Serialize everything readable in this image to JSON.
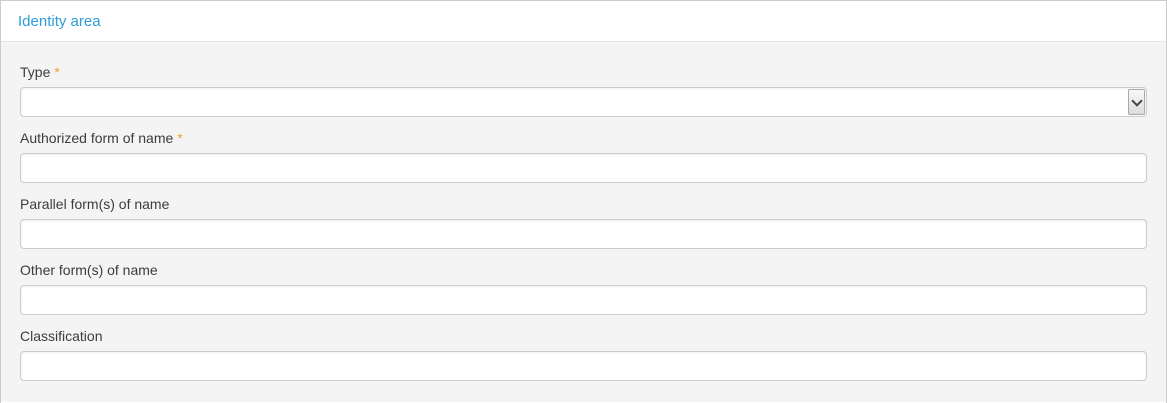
{
  "panel": {
    "title": "Identity area",
    "required_marker": "*"
  },
  "fields": [
    {
      "label": "Type",
      "required": true,
      "control": "select",
      "value": ""
    },
    {
      "label": "Authorized form of name",
      "required": true,
      "control": "text",
      "value": ""
    },
    {
      "label": "Parallel form(s) of name",
      "required": false,
      "control": "text",
      "value": ""
    },
    {
      "label": "Other form(s) of name",
      "required": false,
      "control": "text",
      "value": ""
    },
    {
      "label": "Classification",
      "required": false,
      "control": "text",
      "value": ""
    }
  ],
  "icons": {
    "select_dropdown": "chevron-down-icon"
  },
  "colors": {
    "section_title_blue": "#2b9dda",
    "required_asterisk_orange": "#eca233",
    "body_background": "#f4f4f4",
    "border_gray": "#cccccc"
  }
}
